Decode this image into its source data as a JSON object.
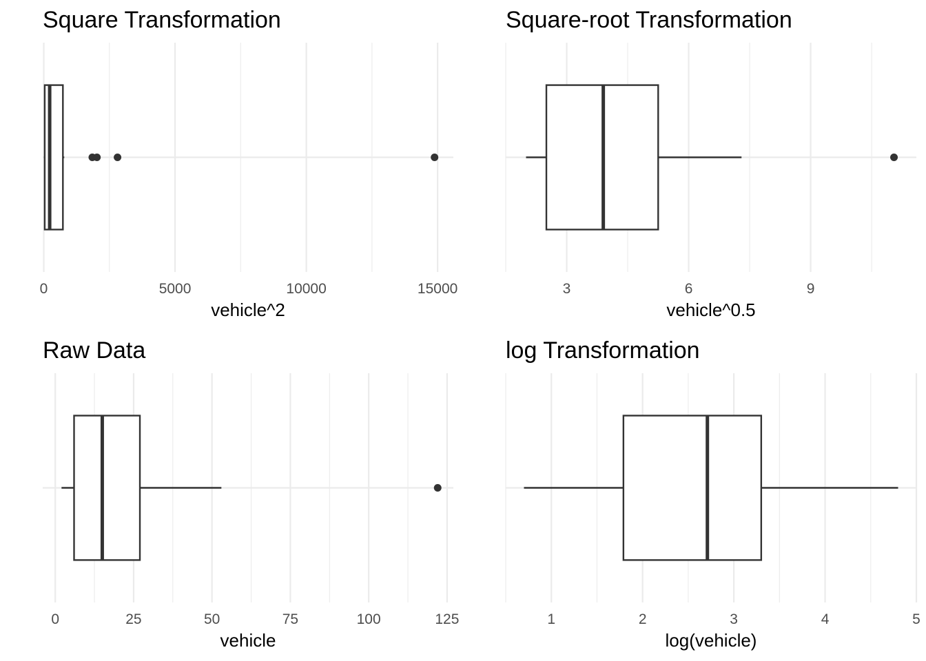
{
  "chart_data": [
    {
      "type": "boxplot",
      "title": "Square Transformation",
      "xlabel": "vehicle^2",
      "xlim": [
        -40,
        15600
      ],
      "x_ticks": [
        0,
        5000,
        10000,
        15000
      ],
      "x_tick_labels": [
        "0",
        "5000",
        "10000",
        "15000"
      ],
      "x_minor": [
        2500,
        7500,
        12500
      ],
      "box": {
        "whisker_low": 4,
        "q1": 36,
        "median": 225,
        "q3": 729,
        "whisker_high": 780
      },
      "outliers": [
        1849,
        2025,
        2809,
        14884
      ],
      "grid": true
    },
    {
      "type": "boxplot",
      "title": "Square-root Transformation",
      "xlabel": "vehicle^0.5",
      "xlim": [
        1.5,
        11.6
      ],
      "x_ticks": [
        3,
        6,
        9
      ],
      "x_tick_labels": [
        "3",
        "6",
        "9"
      ],
      "x_minor": [
        1.5,
        4.5,
        7.5,
        10.5
      ],
      "box": {
        "whisker_low": 2.0,
        "q1": 2.5,
        "median": 3.9,
        "q3": 5.25,
        "whisker_high": 7.3
      },
      "outliers": [
        11.05
      ],
      "grid": true
    },
    {
      "type": "boxplot",
      "title": "Raw Data",
      "xlabel": "vehicle",
      "xlim": [
        -4,
        127
      ],
      "x_ticks": [
        0,
        25,
        50,
        75,
        100,
        125
      ],
      "x_tick_labels": [
        "0",
        "25",
        "50",
        "75",
        "100",
        "125"
      ],
      "x_minor": [
        12.5,
        37.5,
        62.5,
        87.5,
        112.5
      ],
      "box": {
        "whisker_low": 2,
        "q1": 6,
        "median": 15,
        "q3": 27,
        "whisker_high": 53
      },
      "outliers": [
        122
      ],
      "grid": true
    },
    {
      "type": "boxplot",
      "title": "log Transformation",
      "xlabel": "log(vehicle)",
      "xlim": [
        0.5,
        5.0
      ],
      "x_ticks": [
        1,
        2,
        3,
        4,
        5
      ],
      "x_tick_labels": [
        "1",
        "2",
        "3",
        "4",
        "5"
      ],
      "x_minor": [
        0.5,
        1.5,
        2.5,
        3.5,
        4.5
      ],
      "box": {
        "whisker_low": 0.7,
        "q1": 1.79,
        "median": 2.71,
        "q3": 3.3,
        "whisker_high": 4.8
      },
      "outliers": [],
      "grid": true
    }
  ]
}
